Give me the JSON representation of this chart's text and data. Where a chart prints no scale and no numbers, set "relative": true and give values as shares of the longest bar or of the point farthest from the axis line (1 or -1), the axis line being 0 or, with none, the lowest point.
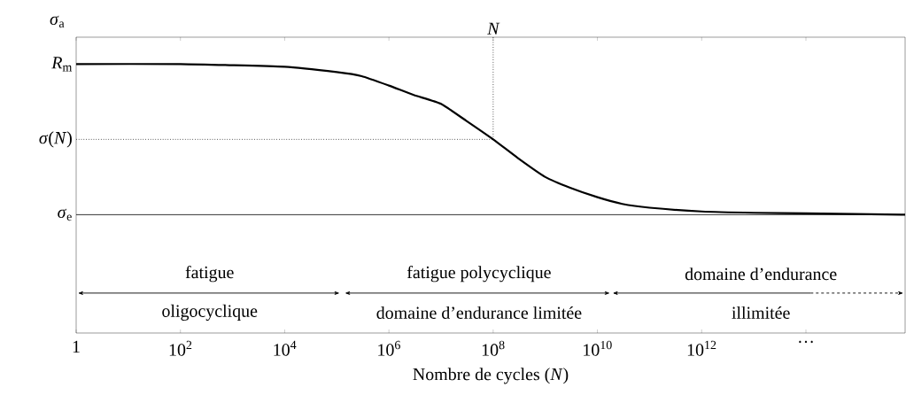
{
  "chart_data": {
    "type": "line",
    "xlabel": "Nombre de cycles (*N*)",
    "ylabel": "*σ*$_{a}$",
    "relative": true,
    "x": [
      1,
      100,
      10000,
      100000,
      300000,
      1000000,
      3000000,
      10000000,
      30000000,
      100000000,
      300000000,
      1000000000,
      3000000000,
      10000000000,
      30000000000,
      100000000000,
      1000000000000,
      10000000000000,
      100000000000000,
      8000000000000000
    ],
    "values": [
      1.0,
      1.0,
      0.99,
      0.97,
      0.955,
      0.92,
      0.885,
      0.852,
      0.79,
      0.72,
      0.65,
      0.58,
      0.54,
      0.505,
      0.48,
      0.466,
      0.452,
      0.447,
      0.445,
      0.44
    ],
    "color": "#000000",
    "log": "x",
    "xlim": [
      1,
      8000000000000000
    ],
    "xticks": [
      1,
      {
        "value": 100,
        "label": "10$^{2}$"
      },
      {
        "value": 10000,
        "label": "10$^{4}$"
      },
      {
        "value": 1000000,
        "label": "10$^{6}$"
      },
      {
        "value": 100000000,
        "label": "10$^{8}$"
      },
      {
        "value": 10000000000,
        "label": "10$^{10}$"
      },
      {
        "value": 1000000000000,
        "label": "10$^{12}$"
      },
      {
        "value": 100000000000000,
        "label": "···"
      }
    ],
    "ref_lines": [
      {
        "axis": "y",
        "value": 0.44,
        "label": "*σ*$_{e}$",
        "color": "#000000",
        "line_style": "solid"
      },
      {
        "axis": "y",
        "value": 0.72,
        "label": "*σ*(*N*)",
        "color": "#000000",
        "line_style": "dotted"
      },
      {
        "axis": "x",
        "value": 100000000,
        "label": "N",
        "color": "#000000",
        "line_style": "dotted"
      }
    ],
    "annotations": [
      {
        "text": "*R*$_{m}$",
        "x": 1,
        "y": 1.0
      },
      "fatigue",
      "oligocyclique",
      "fatigue polycyclique",
      "domaine d’endurance limitée",
      "domaine d’endurance",
      "illimitée"
    ]
  }
}
